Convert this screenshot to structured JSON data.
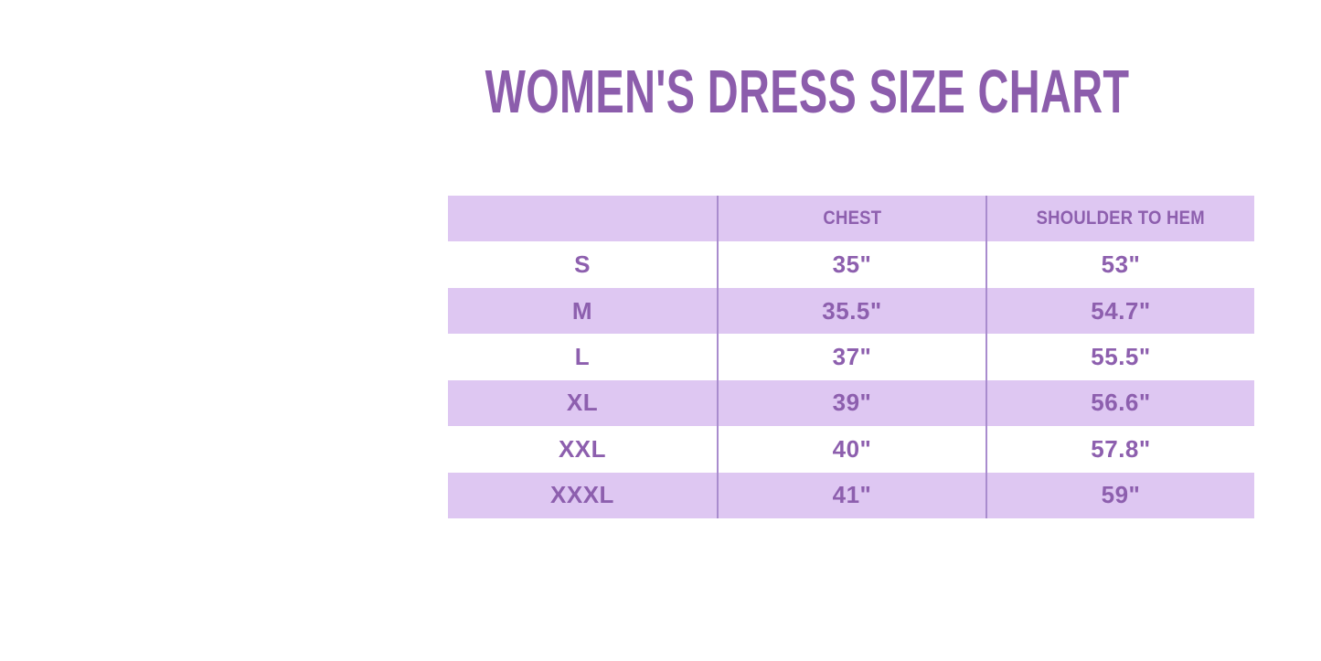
{
  "colors": {
    "background": "#ffffff",
    "title_text": "#8c5dac",
    "table_text": "#8d5fae",
    "band": "#dec7f2",
    "divider": "#a98cce"
  },
  "chart_data": {
    "type": "table",
    "title": "WOMEN'S DRESS SIZE CHART",
    "columns": [
      "",
      "CHEST",
      "SHOULDER TO HEM"
    ],
    "rows": [
      [
        "S",
        "35\"",
        "53\""
      ],
      [
        "M",
        "35.5\"",
        "54.7\""
      ],
      [
        "L",
        "37\"",
        "55.5\""
      ],
      [
        "XL",
        "39\"",
        "56.6\""
      ],
      [
        "XXL",
        "40\"",
        "57.8\""
      ],
      [
        "XXXL",
        "41\"",
        "59\""
      ]
    ],
    "layout": {
      "striped_rows": "header, M, XL, XXXL have lavender band background",
      "column_dividers": true,
      "horizontal_borders": false,
      "columns_equal_width": true
    }
  }
}
